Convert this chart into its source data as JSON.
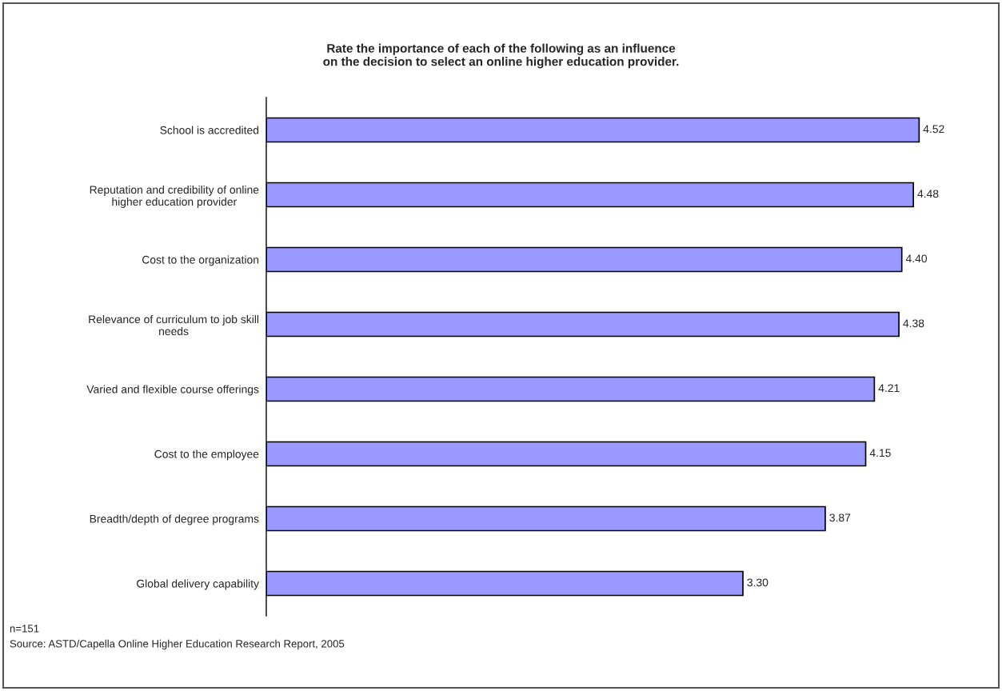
{
  "chart_data": {
    "type": "bar",
    "orientation": "horizontal",
    "title": "Rate the importance of each of the following as an influence\non the decision to select an online higher education provider.",
    "categories": [
      "School is accredited",
      "Reputation and credibility of online\nhigher education provider",
      "Cost to the organization",
      "Relevance of curriculum to job skill\nneeds",
      "Varied and flexible course offerings",
      "Cost to the employee",
      "Breadth/depth of degree programs",
      "Global delivery capability"
    ],
    "values": [
      4.52,
      4.48,
      4.4,
      4.38,
      4.21,
      4.15,
      3.87,
      3.3
    ],
    "value_labels": [
      "4.52",
      "4.48",
      "4.40",
      "4.38",
      "4.21",
      "4.15",
      "3.87",
      "3.30"
    ],
    "color": "#9999ff",
    "tick_labels": "y",
    "grid": false,
    "legend": false,
    "annotations": [
      "n=151",
      "Source: ASTD/Capella Online Higher Education Research Report, 2005"
    ]
  }
}
